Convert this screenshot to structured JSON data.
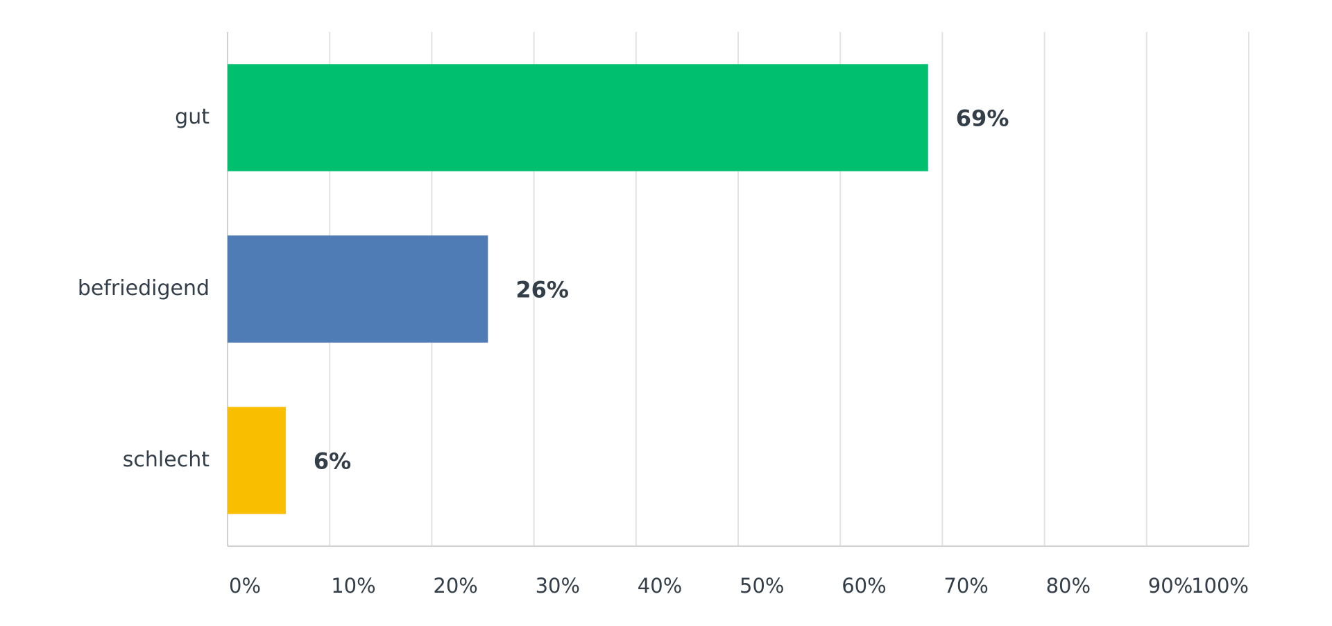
{
  "chart_data": {
    "type": "bar",
    "orientation": "horizontal",
    "categories": [
      "gut",
      "befriedigend",
      "schlecht"
    ],
    "values": [
      68.6,
      25.5,
      5.7
    ],
    "value_labels": [
      "69%",
      "26%",
      "6%"
    ],
    "colors": [
      "#00bf6f",
      "#507cb6",
      "#f9be00"
    ],
    "xlim": [
      0,
      100
    ],
    "xticks": [
      {
        "value": 0,
        "label": "0%"
      },
      {
        "value": 10,
        "label": "10%"
      },
      {
        "value": 20,
        "label": "20%"
      },
      {
        "value": 30,
        "label": "30%"
      },
      {
        "value": 40,
        "label": "40%"
      },
      {
        "value": 50,
        "label": "50%"
      },
      {
        "value": 60,
        "label": "60%"
      },
      {
        "value": 70,
        "label": "70%"
      },
      {
        "value": 80,
        "label": "80%"
      },
      {
        "value": 90,
        "label": "90%"
      },
      {
        "value": 100,
        "label": "100%"
      }
    ],
    "grid": true
  }
}
